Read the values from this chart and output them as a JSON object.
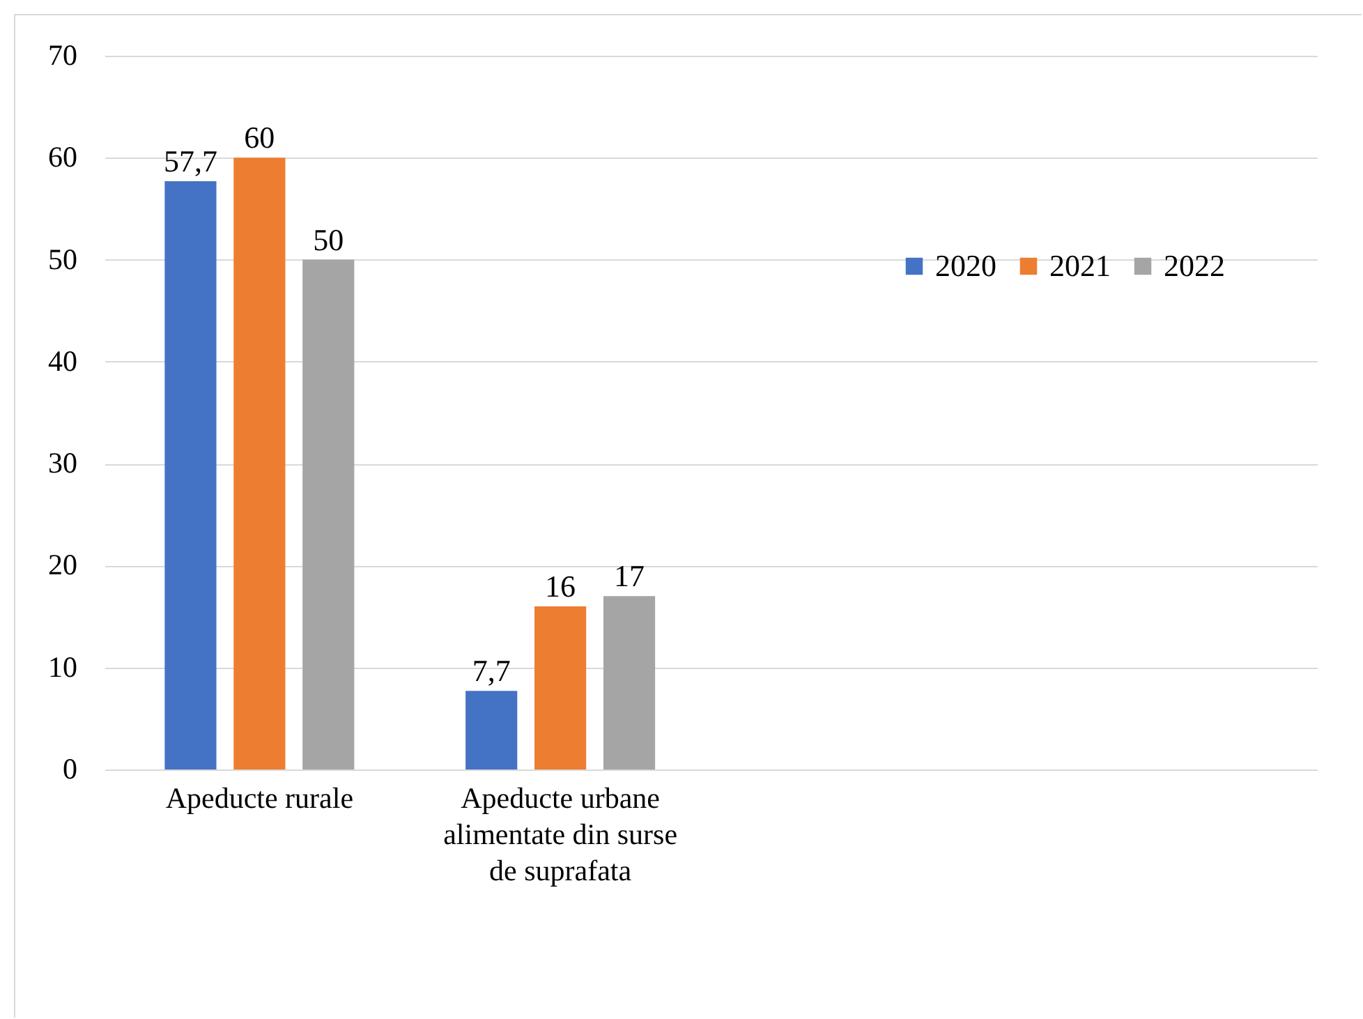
{
  "chart_data": {
    "type": "bar",
    "categories": [
      "Apeducte rurale",
      "Apeducte urbane alimentate din surse de suprafata",
      null,
      null
    ],
    "series": [
      {
        "name": "2020",
        "color": "#4472c4",
        "values": [
          57.7,
          7.7,
          null,
          null
        ],
        "value_labels": [
          "57,7",
          "7,7",
          null,
          null
        ]
      },
      {
        "name": "2021",
        "color": "#ed7d31",
        "values": [
          60,
          16,
          null,
          null
        ],
        "value_labels": [
          "60",
          "16",
          null,
          null
        ]
      },
      {
        "name": "2022",
        "color": "#a5a5a5",
        "values": [
          50,
          17,
          null,
          null
        ],
        "value_labels": [
          "50",
          "17",
          null,
          null
        ]
      }
    ],
    "ylim": [
      0,
      70
    ],
    "yticks": [
      0,
      10,
      20,
      30,
      40,
      50,
      60,
      70
    ],
    "grid": "y",
    "legend": "right"
  }
}
